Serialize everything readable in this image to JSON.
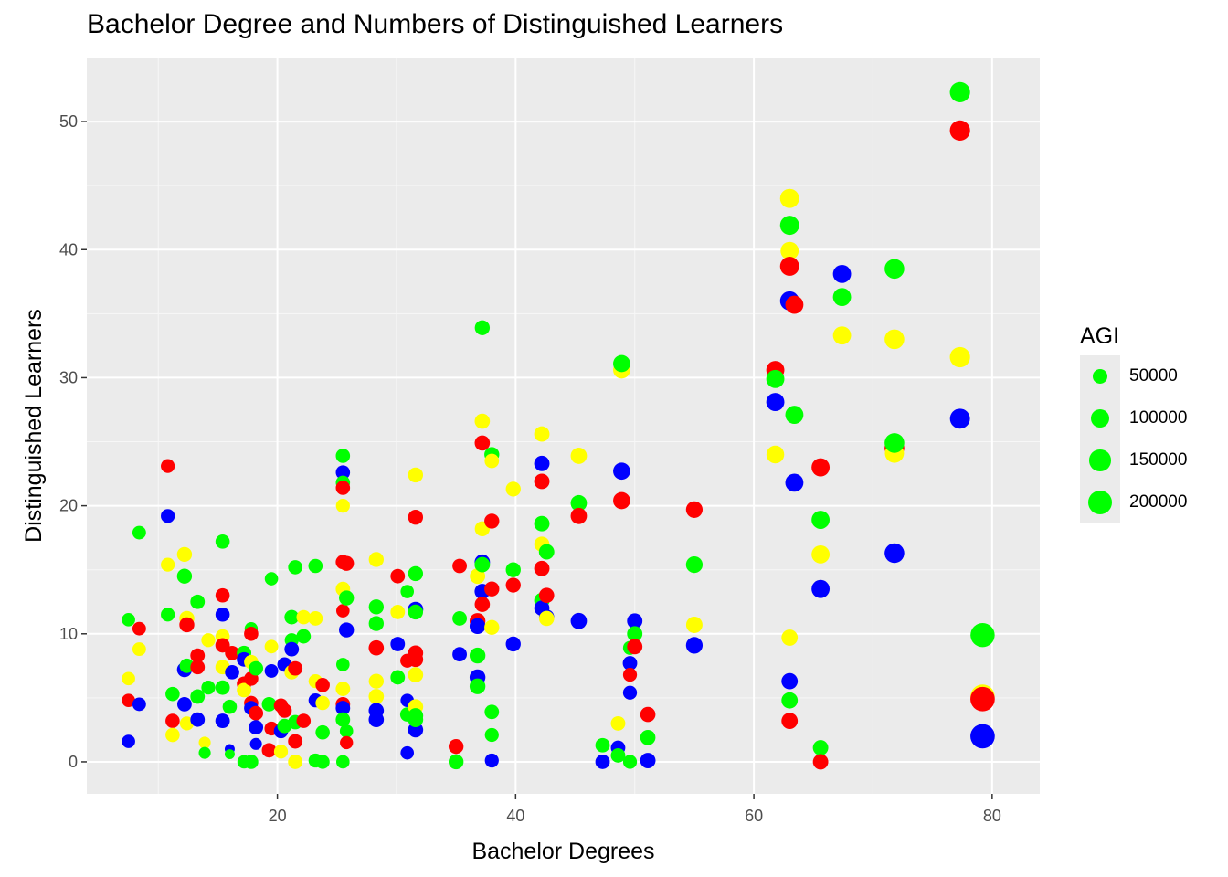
{
  "chart_data": {
    "type": "scatter",
    "title": "Bachelor Degree and Numbers of Distinguished Learners",
    "xlabel": "Bachelor Degrees",
    "ylabel": "Distinguished Learners",
    "xlim": [
      4,
      84
    ],
    "ylim": [
      -2.5,
      55
    ],
    "x_ticks": [
      20,
      40,
      60,
      80
    ],
    "y_ticks": [
      0,
      10,
      20,
      30,
      40,
      50
    ],
    "grid": true,
    "legend": {
      "title": "AGI",
      "position": "right",
      "entries": [
        "50000",
        "100000",
        "150000",
        "200000"
      ],
      "values": [
        50000,
        100000,
        150000,
        200000
      ]
    },
    "colors": {
      "blue": "#0000ff",
      "yellow": "#ffff00",
      "green": "#00ff00",
      "red": "#ff0000"
    },
    "points": [
      [
        7.5,
        11.1,
        "green",
        40000
      ],
      [
        7.5,
        4.8,
        "red",
        40000
      ],
      [
        7.5,
        6.5,
        "yellow",
        40000
      ],
      [
        7.5,
        1.6,
        "blue",
        40000
      ],
      [
        8.4,
        17.9,
        "green",
        42000
      ],
      [
        8.4,
        10.4,
        "red",
        42000
      ],
      [
        8.4,
        8.8,
        "yellow",
        42000
      ],
      [
        8.4,
        4.5,
        "blue",
        42000
      ],
      [
        10.8,
        23.1,
        "red",
        45000
      ],
      [
        10.8,
        19.2,
        "blue",
        45000
      ],
      [
        10.8,
        15.4,
        "yellow",
        45000
      ],
      [
        10.8,
        11.5,
        "green",
        45000
      ],
      [
        11.2,
        5.3,
        "green",
        48000
      ],
      [
        11.2,
        3.2,
        "red",
        48000
      ],
      [
        11.2,
        2.1,
        "yellow",
        48000
      ],
      [
        12.2,
        16.2,
        "yellow",
        55000
      ],
      [
        12.2,
        14.5,
        "green",
        55000
      ],
      [
        12.2,
        7.2,
        "blue",
        55000
      ],
      [
        12.2,
        4.5,
        "blue",
        50000
      ],
      [
        12.4,
        11.2,
        "yellow",
        55000
      ],
      [
        12.4,
        10.7,
        "red",
        55000
      ],
      [
        12.4,
        7.5,
        "green",
        50000
      ],
      [
        12.4,
        3.0,
        "yellow",
        45000
      ],
      [
        13.3,
        12.5,
        "green",
        50000
      ],
      [
        13.3,
        8.3,
        "red",
        50000
      ],
      [
        13.3,
        7.4,
        "red",
        50000
      ],
      [
        13.3,
        5.1,
        "green",
        50000
      ],
      [
        13.3,
        3.3,
        "blue",
        50000
      ],
      [
        13.9,
        1.5,
        "yellow",
        30000
      ],
      [
        13.9,
        0.7,
        "green",
        30000
      ],
      [
        14.2,
        9.5,
        "yellow",
        45000
      ],
      [
        14.2,
        5.8,
        "green",
        45000
      ],
      [
        15.4,
        17.2,
        "green",
        48000
      ],
      [
        15.4,
        13.0,
        "red",
        48000
      ],
      [
        15.4,
        11.5,
        "blue",
        48000
      ],
      [
        15.4,
        9.8,
        "yellow",
        48000
      ],
      [
        15.4,
        9.1,
        "red",
        50000
      ],
      [
        15.4,
        7.4,
        "yellow",
        50000
      ],
      [
        15.4,
        5.8,
        "green",
        50000
      ],
      [
        15.4,
        3.2,
        "blue",
        50000
      ],
      [
        16.2,
        8.5,
        "red",
        48000
      ],
      [
        16.2,
        7.0,
        "blue",
        48000
      ],
      [
        16.0,
        4.3,
        "green",
        48000
      ],
      [
        16.0,
        1.0,
        "blue",
        20000
      ],
      [
        16.0,
        0.6,
        "green",
        20000
      ],
      [
        17.2,
        8.5,
        "green",
        50000
      ],
      [
        17.2,
        8.0,
        "blue",
        50000
      ],
      [
        17.2,
        6.1,
        "red",
        50000
      ],
      [
        17.2,
        5.6,
        "yellow",
        50000
      ],
      [
        17.2,
        0.0,
        "green",
        40000
      ],
      [
        17.8,
        10.4,
        "green",
        38000
      ],
      [
        17.8,
        10.0,
        "red",
        48000
      ],
      [
        17.8,
        7.8,
        "yellow",
        48000
      ],
      [
        17.8,
        6.5,
        "red",
        48000
      ],
      [
        17.8,
        4.6,
        "red",
        48000
      ],
      [
        17.8,
        4.2,
        "blue",
        48000
      ],
      [
        17.8,
        0.0,
        "green",
        48000
      ],
      [
        18.2,
        7.3,
        "green",
        50000
      ],
      [
        18.2,
        3.8,
        "red",
        50000
      ],
      [
        18.2,
        2.7,
        "blue",
        50000
      ],
      [
        18.2,
        1.4,
        "blue",
        30000
      ],
      [
        19.3,
        4.5,
        "green",
        50000
      ],
      [
        19.3,
        0.9,
        "red",
        50000
      ],
      [
        19.5,
        14.3,
        "green",
        40000
      ],
      [
        19.5,
        9.0,
        "yellow",
        42000
      ],
      [
        19.5,
        7.1,
        "blue",
        42000
      ],
      [
        19.5,
        2.6,
        "red",
        45000
      ],
      [
        20.3,
        4.4,
        "red",
        48000
      ],
      [
        20.3,
        2.4,
        "blue",
        48000
      ],
      [
        20.3,
        0.8,
        "yellow",
        45000
      ],
      [
        20.6,
        7.6,
        "blue",
        50000
      ],
      [
        20.6,
        4.0,
        "red",
        50000
      ],
      [
        20.6,
        2.8,
        "green",
        50000
      ],
      [
        21.2,
        11.3,
        "green",
        50000
      ],
      [
        21.2,
        9.5,
        "green",
        45000
      ],
      [
        21.2,
        8.8,
        "blue",
        50000
      ],
      [
        21.2,
        7.0,
        "yellow",
        50000
      ],
      [
        21.5,
        15.2,
        "green",
        48000
      ],
      [
        21.5,
        7.3,
        "red",
        50000
      ],
      [
        21.5,
        3.1,
        "green",
        50000
      ],
      [
        21.5,
        1.6,
        "red",
        50000
      ],
      [
        21.5,
        0.0,
        "yellow",
        50000
      ],
      [
        22.2,
        11.3,
        "yellow",
        48000
      ],
      [
        22.2,
        9.8,
        "green",
        50000
      ],
      [
        22.2,
        3.2,
        "red",
        48000
      ],
      [
        23.2,
        15.3,
        "green",
        48000
      ],
      [
        23.2,
        11.2,
        "yellow",
        50000
      ],
      [
        23.2,
        6.3,
        "yellow",
        45000
      ],
      [
        23.2,
        4.8,
        "blue",
        45000
      ],
      [
        23.2,
        0.1,
        "green",
        45000
      ],
      [
        23.8,
        6.0,
        "red",
        48000
      ],
      [
        23.8,
        4.6,
        "yellow",
        48000
      ],
      [
        23.8,
        2.3,
        "green",
        48000
      ],
      [
        23.8,
        0.0,
        "green",
        45000
      ],
      [
        25.5,
        23.9,
        "green",
        48000
      ],
      [
        25.5,
        22.6,
        "blue",
        48000
      ],
      [
        25.5,
        21.8,
        "green",
        48000
      ],
      [
        25.5,
        21.4,
        "red",
        48000
      ],
      [
        25.5,
        20.0,
        "yellow",
        45000
      ],
      [
        25.5,
        15.6,
        "red",
        50000
      ],
      [
        25.5,
        13.5,
        "yellow",
        50000
      ],
      [
        25.5,
        11.8,
        "red",
        40000
      ],
      [
        25.5,
        7.6,
        "green",
        40000
      ],
      [
        25.5,
        5.7,
        "yellow",
        50000
      ],
      [
        25.5,
        4.5,
        "red",
        50000
      ],
      [
        25.5,
        4.2,
        "blue",
        50000
      ],
      [
        25.5,
        3.3,
        "green",
        50000
      ],
      [
        25.5,
        0.0,
        "green",
        40000
      ],
      [
        25.8,
        15.5,
        "red",
        55000
      ],
      [
        25.8,
        12.8,
        "green",
        55000
      ],
      [
        25.8,
        10.3,
        "blue",
        55000
      ],
      [
        25.8,
        2.4,
        "green",
        40000
      ],
      [
        25.8,
        1.5,
        "red",
        38000
      ],
      [
        28.3,
        15.8,
        "yellow",
        55000
      ],
      [
        28.3,
        12.1,
        "green",
        55000
      ],
      [
        28.3,
        10.8,
        "green",
        55000
      ],
      [
        28.3,
        8.9,
        "red",
        58000
      ],
      [
        28.3,
        6.3,
        "yellow",
        55000
      ],
      [
        28.3,
        5.1,
        "yellow",
        58000
      ],
      [
        28.3,
        4.0,
        "blue",
        58000
      ],
      [
        28.3,
        3.3,
        "blue",
        58000
      ],
      [
        30.1,
        14.5,
        "red",
        50000
      ],
      [
        30.1,
        11.7,
        "yellow",
        50000
      ],
      [
        30.1,
        9.2,
        "blue",
        50000
      ],
      [
        30.1,
        6.6,
        "green",
        50000
      ],
      [
        30.9,
        13.3,
        "green",
        40000
      ],
      [
        30.9,
        7.9,
        "red",
        45000
      ],
      [
        30.9,
        4.8,
        "blue",
        40000
      ],
      [
        30.9,
        3.7,
        "green",
        48000
      ],
      [
        30.9,
        0.7,
        "blue",
        40000
      ],
      [
        31.6,
        22.4,
        "yellow",
        55000
      ],
      [
        31.6,
        19.1,
        "red",
        55000
      ],
      [
        31.6,
        14.7,
        "green",
        55000
      ],
      [
        31.6,
        11.9,
        "blue",
        60000
      ],
      [
        31.6,
        11.7,
        "green",
        55000
      ],
      [
        31.6,
        8.5,
        "red",
        58000
      ],
      [
        31.6,
        8.0,
        "red",
        58000
      ],
      [
        31.6,
        6.8,
        "yellow",
        58000
      ],
      [
        31.6,
        4.3,
        "yellow",
        58000
      ],
      [
        31.6,
        3.6,
        "green",
        58000
      ],
      [
        31.6,
        2.5,
        "blue",
        58000
      ],
      [
        31.6,
        3.3,
        "green",
        58000
      ],
      [
        35.0,
        1.2,
        "red",
        55000
      ],
      [
        35.0,
        0.0,
        "green",
        55000
      ],
      [
        35.3,
        15.3,
        "red",
        50000
      ],
      [
        35.3,
        11.2,
        "green",
        50000
      ],
      [
        35.3,
        8.4,
        "blue",
        50000
      ],
      [
        36.8,
        14.5,
        "yellow",
        60000
      ],
      [
        36.8,
        11.0,
        "red",
        65000
      ],
      [
        36.8,
        10.6,
        "blue",
        65000
      ],
      [
        36.8,
        8.3,
        "green",
        65000
      ],
      [
        36.8,
        6.6,
        "blue",
        65000
      ],
      [
        36.8,
        5.9,
        "green",
        65000
      ],
      [
        37.2,
        33.9,
        "green",
        55000
      ],
      [
        37.2,
        26.6,
        "yellow",
        58000
      ],
      [
        37.2,
        24.9,
        "red",
        58000
      ],
      [
        37.2,
        18.2,
        "yellow",
        55000
      ],
      [
        37.2,
        15.6,
        "blue",
        60000
      ],
      [
        37.2,
        15.4,
        "green",
        60000
      ],
      [
        37.2,
        13.3,
        "blue",
        60000
      ],
      [
        37.2,
        12.3,
        "red",
        58000
      ],
      [
        38.0,
        24.0,
        "green",
        55000
      ],
      [
        38.0,
        23.5,
        "yellow",
        50000
      ],
      [
        38.0,
        18.8,
        "red",
        55000
      ],
      [
        38.0,
        13.5,
        "red",
        55000
      ],
      [
        38.0,
        10.5,
        "yellow",
        55000
      ],
      [
        38.0,
        3.9,
        "green",
        50000
      ],
      [
        38.0,
        2.1,
        "green",
        45000
      ],
      [
        38.0,
        0.1,
        "blue",
        45000
      ],
      [
        39.8,
        21.3,
        "yellow",
        55000
      ],
      [
        39.8,
        15.0,
        "green",
        55000
      ],
      [
        39.8,
        13.8,
        "red",
        55000
      ],
      [
        39.8,
        9.2,
        "blue",
        55000
      ],
      [
        42.2,
        25.6,
        "yellow",
        60000
      ],
      [
        42.2,
        23.3,
        "blue",
        60000
      ],
      [
        42.2,
        21.9,
        "red",
        60000
      ],
      [
        42.2,
        18.6,
        "green",
        60000
      ],
      [
        42.2,
        17.0,
        "yellow",
        58000
      ],
      [
        42.2,
        15.1,
        "red",
        60000
      ],
      [
        42.2,
        12.6,
        "green",
        60000
      ],
      [
        42.2,
        12.0,
        "blue",
        58000
      ],
      [
        42.6,
        16.4,
        "green",
        60000
      ],
      [
        42.6,
        13.0,
        "red",
        58000
      ],
      [
        42.6,
        11.3,
        "blue",
        58000
      ],
      [
        42.6,
        11.2,
        "yellow",
        58000
      ],
      [
        45.3,
        23.9,
        "yellow",
        70000
      ],
      [
        45.3,
        20.2,
        "green",
        70000
      ],
      [
        45.3,
        19.2,
        "red",
        70000
      ],
      [
        45.3,
        11.0,
        "blue",
        70000
      ],
      [
        47.3,
        1.3,
        "green",
        50000
      ],
      [
        47.3,
        0.0,
        "blue",
        50000
      ],
      [
        48.6,
        3.0,
        "yellow",
        50000
      ],
      [
        48.6,
        1.1,
        "blue",
        50000
      ],
      [
        48.6,
        0.5,
        "green",
        50000
      ],
      [
        48.9,
        30.6,
        "yellow",
        80000
      ],
      [
        48.9,
        31.1,
        "green",
        80000
      ],
      [
        48.9,
        22.7,
        "blue",
        80000
      ],
      [
        48.9,
        20.4,
        "red",
        80000
      ],
      [
        49.6,
        7.7,
        "blue",
        50000
      ],
      [
        49.6,
        6.8,
        "red",
        45000
      ],
      [
        49.6,
        5.4,
        "blue",
        45000
      ],
      [
        49.6,
        8.9,
        "green",
        45000
      ],
      [
        49.6,
        0.0,
        "green",
        45000
      ],
      [
        50.0,
        11.0,
        "blue",
        60000
      ],
      [
        50.0,
        10.0,
        "green",
        60000
      ],
      [
        50.0,
        9.0,
        "red",
        60000
      ],
      [
        51.1,
        3.7,
        "red",
        58000
      ],
      [
        51.1,
        1.9,
        "green",
        58000
      ],
      [
        51.1,
        0.1,
        "blue",
        60000
      ],
      [
        55.0,
        19.7,
        "red",
        75000
      ],
      [
        55.0,
        15.4,
        "green",
        75000
      ],
      [
        55.0,
        10.7,
        "yellow",
        72000
      ],
      [
        55.0,
        9.1,
        "blue",
        75000
      ],
      [
        61.8,
        30.6,
        "red",
        95000
      ],
      [
        61.8,
        29.9,
        "green",
        95000
      ],
      [
        61.8,
        28.1,
        "blue",
        95000
      ],
      [
        61.8,
        24.0,
        "yellow",
        90000
      ],
      [
        63.0,
        44.0,
        "yellow",
        110000
      ],
      [
        63.0,
        41.9,
        "green",
        110000
      ],
      [
        63.0,
        39.9,
        "yellow",
        95000
      ],
      [
        63.0,
        38.7,
        "red",
        110000
      ],
      [
        63.0,
        36.0,
        "blue",
        110000
      ],
      [
        63.0,
        9.7,
        "yellow",
        70000
      ],
      [
        63.0,
        6.3,
        "blue",
        70000
      ],
      [
        63.0,
        4.8,
        "green",
        70000
      ],
      [
        63.0,
        3.2,
        "red",
        70000
      ],
      [
        63.4,
        35.7,
        "red",
        95000
      ],
      [
        63.4,
        27.1,
        "green",
        95000
      ],
      [
        63.4,
        21.8,
        "blue",
        95000
      ],
      [
        65.6,
        23.0,
        "red",
        95000
      ],
      [
        65.6,
        18.9,
        "green",
        95000
      ],
      [
        65.6,
        16.2,
        "yellow",
        95000
      ],
      [
        65.6,
        13.5,
        "blue",
        95000
      ],
      [
        65.6,
        1.1,
        "green",
        60000
      ],
      [
        65.6,
        0.0,
        "red",
        60000
      ],
      [
        67.4,
        38.1,
        "blue",
        95000
      ],
      [
        67.4,
        36.3,
        "green",
        95000
      ],
      [
        67.4,
        33.3,
        "yellow",
        95000
      ],
      [
        71.8,
        38.5,
        "green",
        120000
      ],
      [
        71.8,
        33.0,
        "yellow",
        120000
      ],
      [
        71.8,
        24.5,
        "red",
        120000
      ],
      [
        71.8,
        24.1,
        "yellow",
        110000
      ],
      [
        71.8,
        24.9,
        "green",
        120000
      ],
      [
        71.8,
        16.3,
        "blue",
        120000
      ],
      [
        77.3,
        52.3,
        "green",
        130000
      ],
      [
        77.3,
        49.3,
        "red",
        130000
      ],
      [
        77.3,
        31.6,
        "yellow",
        130000
      ],
      [
        77.3,
        26.8,
        "blue",
        125000
      ],
      [
        79.2,
        9.9,
        "green",
        210000
      ],
      [
        79.2,
        5.1,
        "yellow",
        210000
      ],
      [
        79.2,
        4.9,
        "red",
        215000
      ],
      [
        79.2,
        2.0,
        "blue",
        215000
      ]
    ]
  }
}
